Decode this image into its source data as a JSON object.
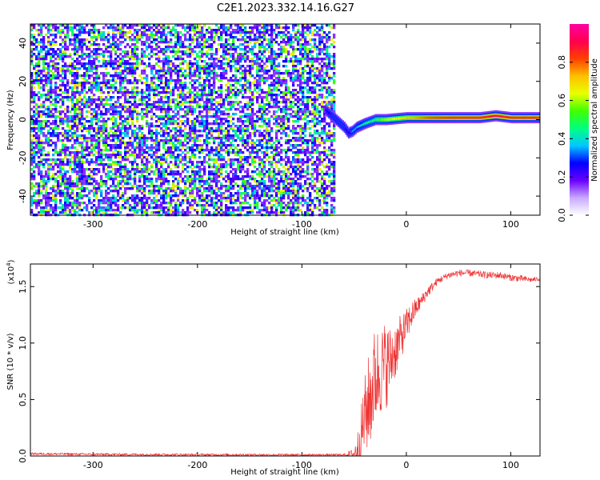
{
  "title": "C2E1.2023.332.14.16.G27",
  "chart_data": [
    {
      "type": "heatmap",
      "xlabel": "Height of straight line (km)",
      "ylabel": "Frequency (Hz)",
      "xlim": [
        -360,
        128
      ],
      "ylim": [
        -50,
        50
      ],
      "xticks": [
        -300,
        -200,
        -100,
        0,
        100
      ],
      "xtick_labels": [
        "-300",
        "-200",
        "-100",
        "0",
        "100"
      ],
      "yticks": [
        -40,
        -20,
        0,
        20,
        40
      ],
      "ytick_labels": [
        "-40",
        "-20",
        "0",
        "20",
        "40"
      ],
      "noise_region_x": [
        -360,
        -70
      ],
      "noise_level": 0.15,
      "signal_track": [
        {
          "x": -78,
          "freq": 5,
          "amp": 0.25
        },
        {
          "x": -72,
          "freq": 2,
          "amp": 0.3
        },
        {
          "x": -66,
          "freq": -1,
          "amp": 0.3
        },
        {
          "x": -60,
          "freq": -4,
          "amp": 0.3
        },
        {
          "x": -56,
          "freq": -7,
          "amp": 0.25
        },
        {
          "x": -52,
          "freq": -6,
          "amp": 0.35
        },
        {
          "x": -48,
          "freq": -4,
          "amp": 0.35
        },
        {
          "x": -44,
          "freq": -3,
          "amp": 0.4
        },
        {
          "x": -40,
          "freq": -2,
          "amp": 0.45
        },
        {
          "x": -35,
          "freq": -1,
          "amp": 0.45
        },
        {
          "x": -30,
          "freq": 0,
          "amp": 0.5
        },
        {
          "x": -20,
          "freq": 0,
          "amp": 0.6
        },
        {
          "x": -10,
          "freq": 0.5,
          "amp": 0.65
        },
        {
          "x": 0,
          "freq": 1,
          "amp": 0.7
        },
        {
          "x": 20,
          "freq": 1,
          "amp": 0.8
        },
        {
          "x": 50,
          "freq": 1,
          "amp": 0.85
        },
        {
          "x": 70,
          "freq": 1,
          "amp": 0.85
        },
        {
          "x": 85,
          "freq": 2,
          "amp": 0.9
        },
        {
          "x": 100,
          "freq": 1,
          "amp": 0.85
        },
        {
          "x": 128,
          "freq": 1,
          "amp": 0.85
        }
      ],
      "colorbar": {
        "label": "Normalized spectral amplitude",
        "range": [
          0,
          1
        ],
        "ticks": [
          0.0,
          0.2,
          0.4,
          0.6,
          0.8
        ],
        "tick_labels": [
          "0.0",
          "0.2",
          "0.4",
          "0.6",
          "0.8"
        ],
        "colors": [
          "#ffffff",
          "#c9a8ff",
          "#6a00ff",
          "#0000ff",
          "#00c8ff",
          "#00ff80",
          "#40ff00",
          "#e8ff00",
          "#ffc000",
          "#ff4000",
          "#ff0050",
          "#ff00a0"
        ]
      }
    },
    {
      "type": "line",
      "xlabel": "Height of straight line (km)",
      "ylabel": "SNR (10 * v/v)",
      "y_multiplier": "(x10",
      "y_multiplier_exp": "4",
      "y_multiplier_close": ")",
      "xlim": [
        -360,
        128
      ],
      "ylim": [
        0,
        1.7
      ],
      "xticks": [
        -300,
        -200,
        -100,
        0,
        100
      ],
      "xtick_labels": [
        "-300",
        "-200",
        "-100",
        "0",
        "100"
      ],
      "yticks": [
        0,
        0.5,
        1.0,
        1.5
      ],
      "ytick_labels": [
        "0.0",
        "0.5",
        "1.0",
        "1.5"
      ],
      "color": "#ee3333",
      "series": [
        {
          "x": [
            -360,
            -300,
            -200,
            -100,
            -60,
            -50,
            -45,
            -40,
            -35,
            -30,
            -25,
            -20,
            -15,
            -10,
            -5,
            0,
            5,
            10,
            15,
            20,
            25,
            30,
            40,
            50,
            60,
            70,
            80,
            90,
            100,
            110,
            120,
            128
          ],
          "values": [
            0.02,
            0.015,
            0.012,
            0.01,
            0.01,
            0.02,
            0.1,
            0.35,
            0.5,
            0.7,
            0.75,
            0.8,
            0.85,
            0.95,
            1.05,
            1.15,
            1.25,
            1.32,
            1.38,
            1.45,
            1.5,
            1.55,
            1.6,
            1.62,
            1.62,
            1.61,
            1.6,
            1.6,
            1.58,
            1.57,
            1.56,
            1.57
          ],
          "jitter": [
            0.01,
            0.01,
            0.01,
            0.01,
            0.01,
            0.05,
            0.2,
            0.35,
            0.45,
            0.45,
            0.4,
            0.4,
            0.3,
            0.25,
            0.2,
            0.15,
            0.12,
            0.08,
            0.06,
            0.05,
            0.04,
            0.03,
            0.03,
            0.03,
            0.03,
            0.03,
            0.03,
            0.03,
            0.03,
            0.03,
            0.02,
            0.02
          ]
        }
      ]
    }
  ]
}
